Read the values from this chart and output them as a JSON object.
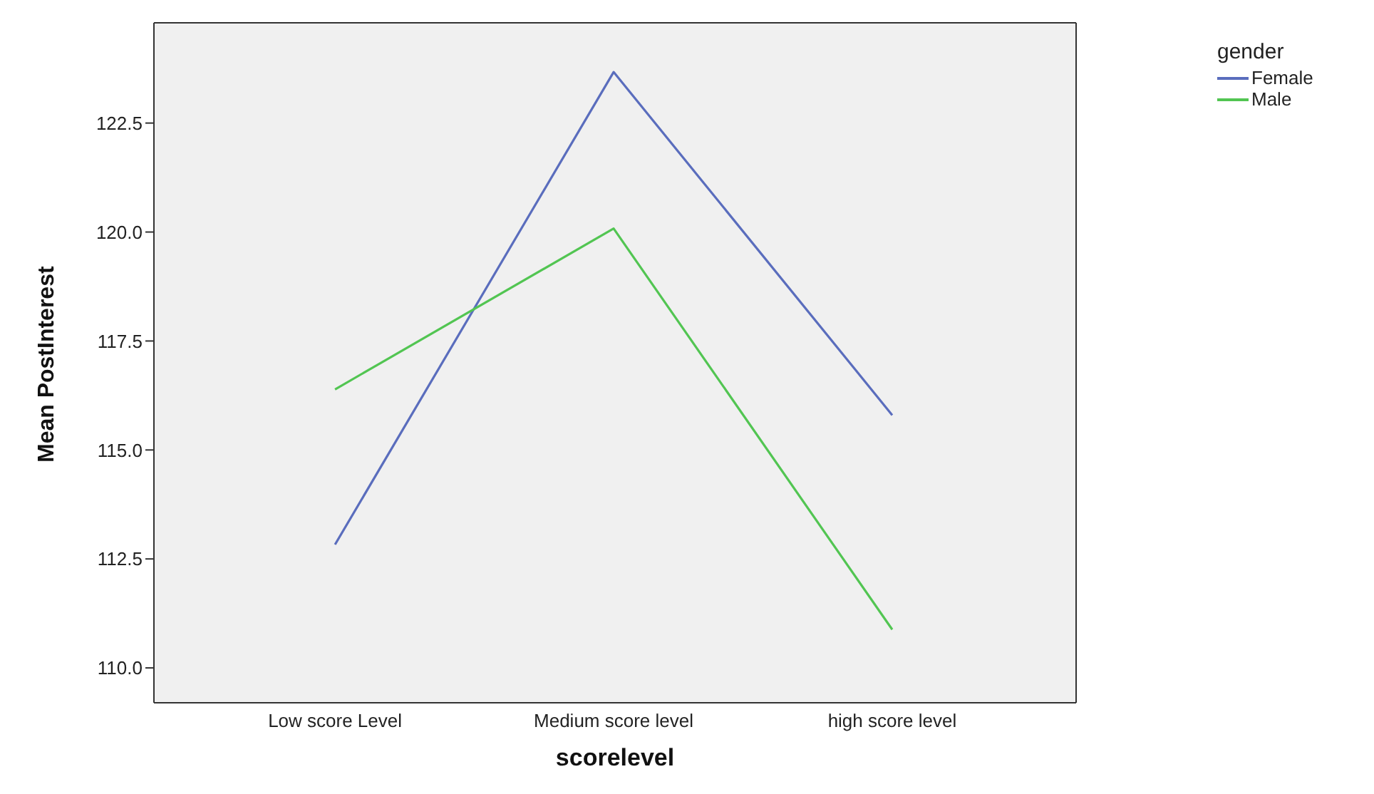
{
  "chart_data": {
    "type": "line",
    "xlabel": "scorelevel",
    "ylabel": "Mean PostInterest",
    "legend_title": "gender",
    "categories": [
      "Low score Level",
      "Medium score level",
      "high score level"
    ],
    "series": [
      {
        "name": "Female",
        "color": "#5a6dbd",
        "values": [
          112.83,
          123.67,
          115.8
        ]
      },
      {
        "name": "Male",
        "color": "#52c552",
        "values": [
          116.39,
          120.08,
          110.88
        ]
      }
    ],
    "ylim": [
      109.2,
      124.8
    ],
    "yticks": [
      {
        "value": 110,
        "label": "110.0"
      },
      {
        "value": 112.5,
        "label": "112.5"
      },
      {
        "value": 115,
        "label": "115.0"
      },
      {
        "value": 117.5,
        "label": "117.5"
      },
      {
        "value": 120,
        "label": "120.0"
      },
      {
        "value": 122.5,
        "label": "122.5"
      }
    ],
    "grid": false,
    "legend": "top right",
    "marker": "none",
    "line_style": "solid"
  }
}
